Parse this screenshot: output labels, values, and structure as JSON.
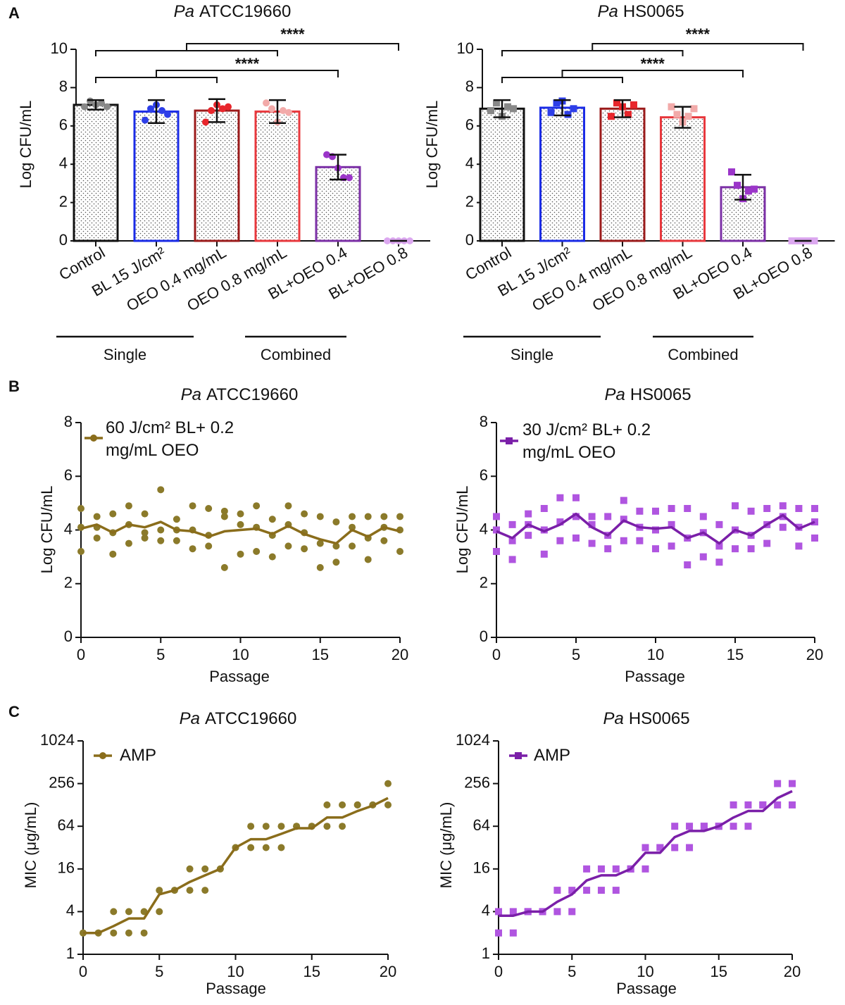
{
  "chart_data": [
    {
      "type": "bar",
      "panel_label": "A",
      "title": [
        "Pa",
        "ATCC19660"
      ],
      "ylabel": "Log CFU/mL",
      "categories": [
        "Control",
        "BL 15 J/cm²",
        "OEO 0.4 mg/mL",
        "OEO 0.8 mg/mL",
        "BL+OEO 0.4",
        "BL+OEO 0.8"
      ],
      "values": [
        7.1,
        6.75,
        6.8,
        6.75,
        3.85,
        0
      ],
      "errors": [
        0.25,
        0.6,
        0.6,
        0.6,
        0.65,
        0
      ],
      "points": [
        [
          7.0,
          7.3,
          7.1,
          7.2,
          7.0
        ],
        [
          6.3,
          6.9,
          7.1,
          6.8,
          6.6
        ],
        [
          6.2,
          6.8,
          7.1,
          6.9,
          7.0
        ],
        [
          7.2,
          6.9,
          6.2,
          6.8,
          6.7
        ],
        [
          4.5,
          4.4,
          3.8,
          3.3,
          3.3
        ],
        [
          0,
          0,
          0,
          0,
          0
        ]
      ],
      "colors": [
        "#111111",
        "#1a2be6",
        "#9b1b1b",
        "#e8383d",
        "#7b2fa6",
        "#d9a6ea"
      ],
      "point_colors": [
        "#888888",
        "#2d3ee8",
        "#e8262c",
        "#f2aaa9",
        "#9b35c9",
        "#dca8f0"
      ],
      "marker": "circle",
      "ylim": [
        0,
        10
      ],
      "yticks": [
        0,
        2,
        4,
        6,
        8,
        10
      ],
      "annotations": [
        "****",
        "****"
      ],
      "group_labels": [
        "Single",
        "Combined"
      ]
    },
    {
      "type": "bar",
      "title": [
        "Pa",
        "HS0065"
      ],
      "ylabel": "Log CFU/mL",
      "categories": [
        "Control",
        "BL 15 J/cm²",
        "OEO 0.4 mg/mL",
        "OEO 0.8 mg/mL",
        "BL+OEO 0.4",
        "BL+OEO 0.8"
      ],
      "values": [
        6.9,
        6.95,
        6.9,
        6.45,
        2.8,
        0
      ],
      "errors": [
        0.45,
        0.4,
        0.45,
        0.55,
        0.65,
        0
      ],
      "points": [
        [
          6.8,
          7.2,
          6.5,
          7.0,
          6.9
        ],
        [
          6.7,
          7.2,
          7.3,
          6.6,
          6.9
        ],
        [
          6.5,
          7.2,
          7.0,
          6.6,
          7.1
        ],
        [
          7.0,
          6.6,
          6.2,
          6.5,
          6.9
        ],
        [
          3.6,
          2.9,
          2.2,
          2.6,
          2.7
        ],
        [
          0,
          0,
          0,
          0,
          0
        ]
      ],
      "colors": [
        "#111111",
        "#1a2be6",
        "#9b1b1b",
        "#e8383d",
        "#7b2fa6",
        "#d9a6ea"
      ],
      "point_colors": [
        "#888888",
        "#2d3ee8",
        "#e8262c",
        "#f2aaa9",
        "#9b35c9",
        "#dca8f0"
      ],
      "marker": "square",
      "ylim": [
        0,
        10
      ],
      "yticks": [
        0,
        2,
        4,
        6,
        8,
        10
      ],
      "annotations": [
        "****",
        "****"
      ],
      "group_labels": [
        "Single",
        "Combined"
      ]
    },
    {
      "type": "line",
      "panel_label": "B",
      "title": [
        "Pa",
        "ATCC19660"
      ],
      "xlabel": "Passage",
      "ylabel": "Log CFU/mL",
      "x": [
        0,
        1,
        2,
        3,
        4,
        5,
        6,
        7,
        8,
        9,
        10,
        11,
        12,
        13,
        14,
        15,
        16,
        17,
        18,
        19,
        20
      ],
      "series": [
        {
          "name": "60 J/cm² BL+ 0.2 mg/mL OEO",
          "color": "#8a6d1b",
          "marker": "circle",
          "values": [
            4.05,
            4.2,
            3.9,
            4.2,
            4.1,
            4.3,
            4.0,
            3.95,
            3.75,
            3.95,
            4.0,
            4.05,
            3.85,
            4.15,
            3.85,
            3.65,
            3.5,
            4.0,
            3.75,
            4.1,
            3.95
          ]
        }
      ],
      "replicates": {
        "color": "#8b7a2a",
        "x": [
          0,
          0,
          0,
          1,
          1,
          1,
          2,
          2,
          2,
          3,
          3,
          3,
          4,
          4,
          4,
          5,
          5,
          5,
          6,
          6,
          6,
          7,
          7,
          7,
          8,
          8,
          8,
          9,
          9,
          9,
          10,
          10,
          10,
          11,
          11,
          11,
          12,
          12,
          12,
          13,
          13,
          13,
          14,
          14,
          14,
          15,
          15,
          15,
          16,
          16,
          16,
          17,
          17,
          17,
          18,
          18,
          18,
          19,
          19,
          19,
          20,
          20,
          20
        ],
        "values": [
          4.8,
          4.1,
          3.2,
          4.5,
          4.1,
          3.7,
          4.6,
          3.9,
          3.1,
          4.9,
          4.2,
          3.5,
          4.6,
          3.9,
          3.7,
          5.5,
          4.0,
          3.6,
          4.4,
          4.0,
          3.6,
          4.9,
          4.0,
          3.3,
          4.8,
          3.8,
          3.4,
          4.7,
          4.5,
          2.6,
          4.6,
          4.2,
          3.1,
          4.9,
          4.1,
          3.2,
          4.4,
          3.8,
          3.0,
          4.9,
          4.2,
          3.4,
          4.6,
          3.9,
          3.3,
          4.5,
          3.5,
          2.6,
          4.3,
          3.4,
          2.8,
          4.5,
          4.1,
          3.4,
          4.5,
          3.7,
          2.9,
          4.5,
          4.1,
          3.6,
          4.5,
          4.0,
          3.2
        ]
      },
      "xlim": [
        0,
        20
      ],
      "xticks": [
        0,
        5,
        10,
        15,
        20
      ],
      "ylim": [
        0,
        8
      ],
      "yticks": [
        0,
        2,
        4,
        6,
        8
      ]
    },
    {
      "type": "line",
      "title": [
        "Pa",
        "HS0065"
      ],
      "xlabel": "Passage",
      "ylabel": "Log CFU/mL",
      "x": [
        0,
        1,
        2,
        3,
        4,
        5,
        6,
        7,
        8,
        9,
        10,
        11,
        12,
        13,
        14,
        15,
        16,
        17,
        18,
        19,
        20
      ],
      "series": [
        {
          "name": "30 J/cm² BL+ 0.2 mg/mL OEO",
          "color": "#7a1fa8",
          "marker": "square",
          "values": [
            3.95,
            3.7,
            4.2,
            3.95,
            4.2,
            4.6,
            4.1,
            3.8,
            4.35,
            4.1,
            4.05,
            4.1,
            3.7,
            3.9,
            3.5,
            4.0,
            3.8,
            4.2,
            4.55,
            4.05,
            4.3
          ]
        }
      ],
      "replicates": {
        "color": "#b055e0",
        "x": [
          0,
          0,
          0,
          1,
          1,
          1,
          2,
          2,
          2,
          3,
          3,
          3,
          4,
          4,
          4,
          5,
          5,
          5,
          6,
          6,
          6,
          7,
          7,
          7,
          8,
          8,
          8,
          9,
          9,
          9,
          10,
          10,
          10,
          11,
          11,
          11,
          12,
          12,
          12,
          13,
          13,
          13,
          14,
          14,
          14,
          15,
          15,
          15,
          16,
          16,
          16,
          17,
          17,
          17,
          18,
          18,
          18,
          19,
          19,
          19,
          20,
          20,
          20
        ],
        "values": [
          4.5,
          4.0,
          3.2,
          4.2,
          3.6,
          2.9,
          4.6,
          4.2,
          3.8,
          4.8,
          4.0,
          3.1,
          5.2,
          4.3,
          3.6,
          5.2,
          4.5,
          3.7,
          4.5,
          4.2,
          3.5,
          4.5,
          3.8,
          3.3,
          5.1,
          4.4,
          3.6,
          4.7,
          4.1,
          3.6,
          4.7,
          4.0,
          3.3,
          4.8,
          4.2,
          3.4,
          4.8,
          3.7,
          2.7,
          4.5,
          3.9,
          3.0,
          4.2,
          3.4,
          2.8,
          4.9,
          4.0,
          3.3,
          4.7,
          3.8,
          3.3,
          4.8,
          4.2,
          3.5,
          4.9,
          4.5,
          4.1,
          4.8,
          4.1,
          3.4,
          4.8,
          4.3,
          3.7
        ]
      },
      "xlim": [
        0,
        20
      ],
      "xticks": [
        0,
        5,
        10,
        15,
        20
      ],
      "ylim": [
        0,
        8
      ],
      "yticks": [
        0,
        2,
        4,
        6,
        8
      ]
    },
    {
      "type": "line",
      "panel_label": "C",
      "title": [
        "Pa",
        "ATCC19660"
      ],
      "xlabel": "Passage",
      "ylabel": "MIC (μg/mL)",
      "x": [
        0,
        1,
        2,
        3,
        4,
        5,
        6,
        7,
        8,
        9,
        10,
        11,
        12,
        13,
        14,
        15,
        16,
        17,
        18,
        19,
        20
      ],
      "series": [
        {
          "name": "AMP",
          "color": "#8a6d1b",
          "marker": "circle",
          "values": [
            2,
            2,
            2.5,
            3.2,
            3.2,
            7,
            8,
            10.5,
            13,
            16,
            32,
            42,
            42,
            50,
            60,
            60,
            85,
            85,
            105,
            125,
            160
          ]
        }
      ],
      "replicates": {
        "color": "#8b7a2a",
        "x": [
          0,
          0,
          1,
          1,
          2,
          2,
          3,
          3,
          4,
          4,
          5,
          5,
          6,
          6,
          7,
          7,
          8,
          8,
          9,
          9,
          10,
          10,
          11,
          11,
          12,
          12,
          13,
          13,
          14,
          14,
          15,
          15,
          16,
          16,
          17,
          17,
          18,
          18,
          19,
          19,
          20,
          20
        ],
        "values": [
          2,
          2,
          2,
          2,
          4,
          2,
          4,
          2,
          4,
          2,
          8,
          4,
          8,
          8,
          16,
          8,
          16,
          8,
          16,
          16,
          32,
          32,
          64,
          32,
          64,
          32,
          64,
          32,
          64,
          64,
          64,
          64,
          128,
          64,
          128,
          64,
          128,
          128,
          128,
          128,
          256,
          128
        ]
      },
      "log_scale": true,
      "xlim": [
        0,
        20
      ],
      "xticks": [
        0,
        5,
        10,
        15,
        20
      ],
      "ylim": [
        1,
        1024
      ],
      "yticks": [
        1,
        4,
        16,
        64,
        256,
        1024
      ]
    },
    {
      "type": "line",
      "title": [
        "Pa",
        "HS0065"
      ],
      "xlabel": "Passage",
      "ylabel": "MIC (μg/mL)",
      "x": [
        0,
        1,
        2,
        3,
        4,
        5,
        6,
        7,
        8,
        9,
        10,
        11,
        12,
        13,
        14,
        15,
        16,
        17,
        18,
        19,
        20
      ],
      "series": [
        {
          "name": "AMP",
          "color": "#7a1fa8",
          "marker": "square",
          "values": [
            3.5,
            3.5,
            4,
            4,
            5.5,
            7,
            11,
            13,
            13,
            16,
            27,
            27,
            45,
            55,
            55,
            64,
            85,
            105,
            105,
            160,
            200
          ]
        }
      ],
      "replicates": {
        "color": "#b055e0",
        "x": [
          0,
          0,
          1,
          1,
          2,
          2,
          3,
          3,
          4,
          4,
          5,
          5,
          6,
          6,
          7,
          7,
          8,
          8,
          9,
          9,
          10,
          10,
          11,
          11,
          12,
          12,
          13,
          13,
          14,
          14,
          15,
          15,
          16,
          16,
          17,
          17,
          18,
          18,
          19,
          19,
          20,
          20
        ],
        "values": [
          4,
          2,
          4,
          2,
          4,
          4,
          4,
          4,
          8,
          4,
          8,
          4,
          16,
          8,
          16,
          8,
          16,
          8,
          16,
          16,
          32,
          16,
          32,
          32,
          64,
          32,
          64,
          32,
          64,
          64,
          64,
          64,
          128,
          64,
          128,
          64,
          128,
          128,
          256,
          128,
          256,
          128
        ]
      },
      "log_scale": true,
      "xlim": [
        0,
        20
      ],
      "xticks": [
        0,
        5,
        10,
        15,
        20
      ],
      "ylim": [
        1,
        1024
      ],
      "yticks": [
        1,
        4,
        16,
        64,
        256,
        1024
      ]
    }
  ]
}
